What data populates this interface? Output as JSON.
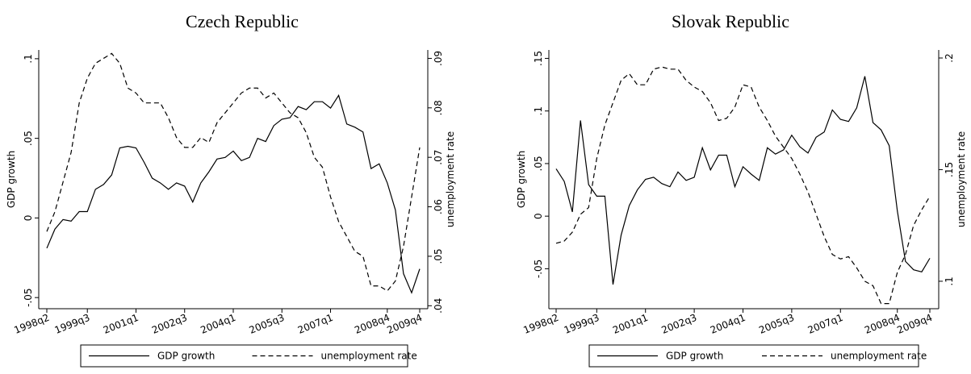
{
  "chart_data": [
    {
      "type": "line",
      "title": "Czech Republic",
      "categories": [
        "1998q2",
        null,
        null,
        null,
        null,
        "1999q3",
        null,
        null,
        null,
        null,
        null,
        "2001q1",
        null,
        null,
        null,
        null,
        null,
        "2002q3",
        null,
        null,
        null,
        null,
        null,
        "2004q1",
        null,
        null,
        null,
        null,
        null,
        "2005q3",
        null,
        null,
        null,
        null,
        null,
        "2007q1",
        null,
        null,
        null,
        null,
        null,
        null,
        "2008q4",
        null,
        null,
        null,
        "2009q4"
      ],
      "ylabel": "GDP growth",
      "y2label": "unemployment rate",
      "ylim": [
        -0.057,
        0.1055
      ],
      "yticks": [
        {
          "value": -0.05,
          "label": "-.05"
        },
        0,
        {
          "value": 0.05,
          "label": ".05"
        },
        {
          "value": 0.1,
          "label": ".1"
        }
      ],
      "y2lim": [
        0.0394,
        0.0917
      ],
      "y2ticks": [
        {
          "value": 0.04,
          "label": ".04"
        },
        {
          "value": 0.05,
          "label": ".05"
        },
        {
          "value": 0.06,
          "label": ".06"
        },
        {
          "value": 0.07,
          "label": ".07"
        },
        {
          "value": 0.08,
          "label": ".08"
        },
        {
          "value": 0.09,
          "label": ".09"
        }
      ],
      "legend": "bottom",
      "series": [
        {
          "name": "GDP growth",
          "color": "#000000",
          "line_style": "solid",
          "values": [
            -0.019,
            -0.007,
            -0.001,
            -0.002,
            0.004,
            0.004,
            0.018,
            0.021,
            0.027,
            0.044,
            0.045,
            0.044,
            0.035,
            0.025,
            0.022,
            0.018,
            0.022,
            0.02,
            0.01,
            0.022,
            0.029,
            0.037,
            0.038,
            0.042,
            0.036,
            0.038,
            0.05,
            0.048,
            0.058,
            0.062,
            0.063,
            0.07,
            0.068,
            0.073,
            0.073,
            0.069,
            0.077,
            0.059,
            0.057,
            0.054,
            0.031,
            0.034,
            0.022,
            0.005,
            -0.035,
            -0.047,
            -0.032
          ]
        },
        {
          "name": "unemployment rate",
          "color": "#000000",
          "line_style": "dashed",
          "axis": "y2",
          "values": [
            0.055,
            0.059,
            0.065,
            0.071,
            0.081,
            0.086,
            0.089,
            0.09,
            0.091,
            0.089,
            0.084,
            0.083,
            0.081,
            0.081,
            0.081,
            0.078,
            0.074,
            0.072,
            0.072,
            0.074,
            0.073,
            0.077,
            0.079,
            0.081,
            0.083,
            0.084,
            0.084,
            0.082,
            0.083,
            0.081,
            0.079,
            0.078,
            0.075,
            0.07,
            0.068,
            0.062,
            0.057,
            0.054,
            0.051,
            0.05,
            0.044,
            0.044,
            0.043,
            0.045,
            0.052,
            0.062,
            0.072
          ]
        }
      ]
    },
    {
      "type": "line",
      "title": "Slovak Republic",
      "categories": [
        "1998q2",
        null,
        null,
        null,
        null,
        "1999q3",
        null,
        null,
        null,
        null,
        null,
        "2001q1",
        null,
        null,
        null,
        null,
        null,
        "2002q3",
        null,
        null,
        null,
        null,
        null,
        "2004q1",
        null,
        null,
        null,
        null,
        null,
        "2005q3",
        null,
        null,
        null,
        null,
        null,
        "2007q1",
        null,
        null,
        null,
        null,
        null,
        null,
        "2008q4",
        null,
        null,
        null,
        "2009q4"
      ],
      "ylabel": "GDP growth",
      "y2label": "unemployment rate",
      "ylim": [
        -0.088,
        0.158
      ],
      "yticks": [
        {
          "value": -0.05,
          "label": "-.05"
        },
        0,
        {
          "value": 0.05,
          "label": ".05"
        },
        {
          "value": 0.1,
          "label": ".1"
        },
        {
          "value": 0.15,
          "label": ".15"
        }
      ],
      "y2lim": [
        0.0877,
        0.2036
      ],
      "y2ticks": [
        {
          "value": 0.1,
          "label": ".1"
        },
        {
          "value": 0.15,
          "label": ".15"
        },
        {
          "value": 0.2,
          "label": ".2"
        }
      ],
      "legend": "bottom",
      "series": [
        {
          "name": "GDP growth",
          "color": "#000000",
          "line_style": "solid",
          "values": [
            0.045,
            0.033,
            0.004,
            0.091,
            0.03,
            0.019,
            0.019,
            -0.065,
            -0.018,
            0.01,
            0.025,
            0.035,
            0.037,
            0.031,
            0.028,
            0.042,
            0.034,
            0.037,
            0.065,
            0.044,
            0.058,
            0.058,
            0.028,
            0.047,
            0.04,
            0.034,
            0.065,
            0.059,
            0.063,
            0.077,
            0.066,
            0.06,
            0.075,
            0.08,
            0.101,
            0.092,
            0.09,
            0.103,
            0.133,
            0.089,
            0.082,
            0.067,
            0.005,
            -0.043,
            -0.051,
            -0.053,
            -0.04
          ]
        },
        {
          "name": "unemployment rate",
          "color": "#000000",
          "line_style": "dashed",
          "axis": "y2",
          "values": [
            0.117,
            0.118,
            0.122,
            0.13,
            0.133,
            0.155,
            0.17,
            0.18,
            0.19,
            0.193,
            0.188,
            0.188,
            0.195,
            0.196,
            0.195,
            0.195,
            0.19,
            0.187,
            0.185,
            0.18,
            0.172,
            0.173,
            0.178,
            0.188,
            0.187,
            0.178,
            0.172,
            0.165,
            0.16,
            0.155,
            0.148,
            0.14,
            0.13,
            0.12,
            0.112,
            0.11,
            0.111,
            0.106,
            0.1,
            0.098,
            0.09,
            0.09,
            0.104,
            0.112,
            0.125,
            0.132,
            0.138
          ]
        }
      ]
    }
  ]
}
